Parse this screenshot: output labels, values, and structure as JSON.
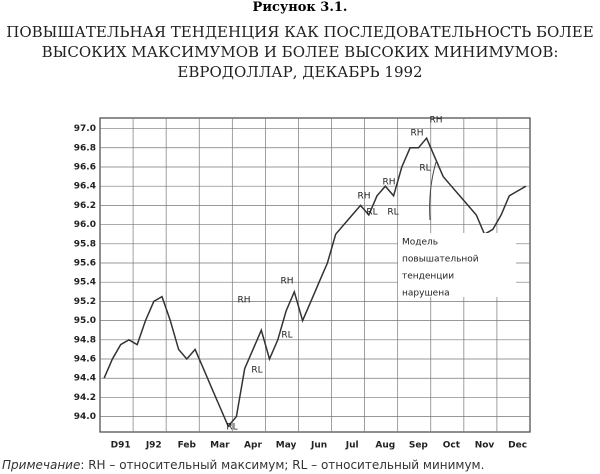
{
  "chart_data": {
    "type": "line",
    "figure_label": "Рисунок 3.1.",
    "title": "ПОВЫШАТЕЛЬНАЯ ТЕНДЕНЦИЯ КАК ПОСЛЕДОВАТЕЛЬНОСТЬ БОЛЕЕ ВЫСОКИХ МАКСИМУМОВ И БОЛЕЕ ВЫСОКИХ МИНИМУМОВ: ЕВРОДОЛЛАР, ДЕКАБРЬ 1992",
    "categories": [
      null,
      null,
      "D91",
      null,
      null,
      null,
      "J92",
      null,
      null,
      null,
      "Feb",
      null,
      null,
      null,
      "Mar",
      null,
      null,
      null,
      "Apr",
      null,
      null,
      null,
      "May",
      null,
      null,
      null,
      "Jun",
      null,
      null,
      null,
      "Jul",
      null,
      null,
      null,
      "Aug",
      null,
      null,
      null,
      "Sep",
      null,
      null,
      null,
      "Oct",
      null,
      null,
      null,
      "Nov",
      null,
      null,
      null,
      "Dec",
      null
    ],
    "values": [
      94.4,
      94.6,
      94.75,
      94.8,
      94.75,
      95.0,
      95.2,
      95.25,
      95.0,
      94.7,
      94.6,
      94.7,
      94.5,
      94.3,
      94.1,
      93.9,
      94.0,
      94.5,
      94.7,
      94.9,
      94.6,
      94.8,
      95.1,
      95.3,
      95.0,
      95.2,
      95.4,
      95.6,
      95.9,
      96.0,
      96.1,
      96.2,
      96.1,
      96.3,
      96.4,
      96.3,
      96.6,
      96.8,
      96.8,
      96.9,
      96.7,
      96.5,
      96.4,
      96.3,
      96.2,
      96.1,
      95.9,
      95.95,
      96.1,
      96.3,
      96.35,
      96.4
    ],
    "color": "#333333",
    "ylim": [
      93.84,
      97.11
    ],
    "yticks": [
      {
        "value": 94,
        "label": "94.0"
      },
      {
        "value": 94.2,
        "label": "94.2"
      },
      {
        "value": 94.4,
        "label": "94.4"
      },
      {
        "value": 94.6,
        "label": "94.6"
      },
      {
        "value": 94.8,
        "label": "94.8"
      },
      {
        "value": 95,
        "label": "95.0"
      },
      {
        "value": 95.2,
        "label": "95.2"
      },
      {
        "value": 95.4,
        "label": "95.4"
      },
      {
        "value": 95.6,
        "label": "95.6"
      },
      {
        "value": 95.8,
        "label": "95.8"
      },
      {
        "value": 96,
        "label": "96.0"
      },
      {
        "value": 96.2,
        "label": "96.2"
      },
      {
        "value": 96.4,
        "label": "96.4"
      },
      {
        "value": 96.6,
        "label": "96.6"
      },
      {
        "value": 96.8,
        "label": "96.8"
      },
      {
        "value": 97,
        "label": "97.0"
      }
    ],
    "grid": true,
    "annotations": [
      "RH",
      "RL",
      "RH",
      "RL",
      "RL",
      "RH",
      "RH",
      "RL",
      "RL",
      "RH",
      "RH",
      "RL"
    ],
    "callout": [
      "Модель",
      "повышательной",
      "тенденции",
      "нарушена"
    ],
    "note_label": "Примечание",
    "note": ": RH – относительный максимум; RL – относительный минимум."
  }
}
